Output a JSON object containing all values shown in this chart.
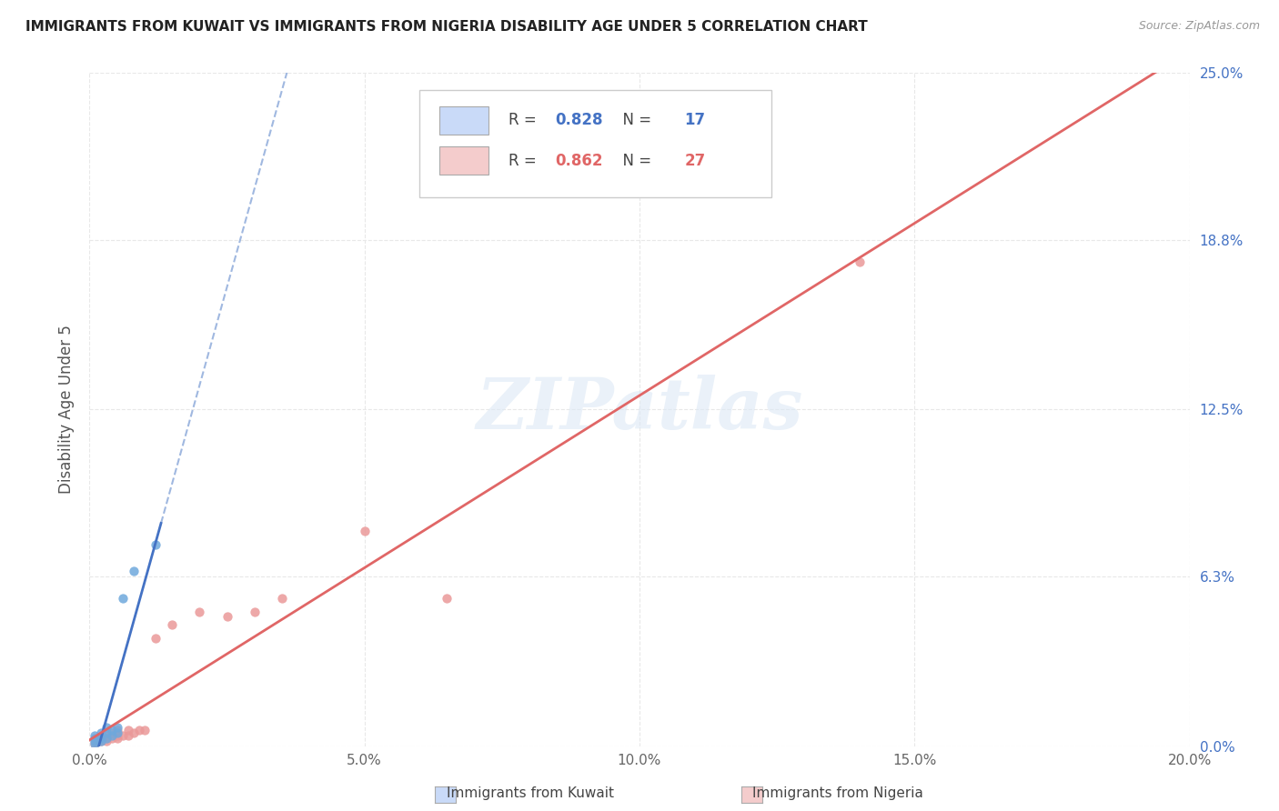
{
  "title": "IMMIGRANTS FROM KUWAIT VS IMMIGRANTS FROM NIGERIA DISABILITY AGE UNDER 5 CORRELATION CHART",
  "source": "Source: ZipAtlas.com",
  "ylabel": "Disability Age Under 5",
  "xlim": [
    0.0,
    0.2
  ],
  "ylim": [
    0.0,
    0.25
  ],
  "x_ticks": [
    0.0,
    0.05,
    0.1,
    0.15,
    0.2
  ],
  "x_tick_labels": [
    "0.0%",
    "5.0%",
    "10.0%",
    "15.0%",
    "20.0%"
  ],
  "y_tick_labels_right": [
    "0.0%",
    "6.3%",
    "12.5%",
    "18.8%",
    "25.0%"
  ],
  "y_ticks": [
    0.0,
    0.063,
    0.125,
    0.188,
    0.25
  ],
  "kuwait_color": "#6fa8dc",
  "nigeria_color": "#ea9999",
  "kuwait_line_color": "#4472c4",
  "nigeria_line_color": "#e06666",
  "kuwait_R": 0.828,
  "kuwait_N": 17,
  "nigeria_R": 0.862,
  "nigeria_N": 27,
  "watermark": "ZIPatlas",
  "kuwait_scatter_x": [
    0.001,
    0.001,
    0.001,
    0.001,
    0.002,
    0.002,
    0.002,
    0.003,
    0.003,
    0.003,
    0.004,
    0.004,
    0.005,
    0.005,
    0.006,
    0.008,
    0.012
  ],
  "kuwait_scatter_y": [
    0.001,
    0.002,
    0.003,
    0.004,
    0.002,
    0.003,
    0.005,
    0.003,
    0.005,
    0.007,
    0.004,
    0.006,
    0.005,
    0.007,
    0.055,
    0.065,
    0.075
  ],
  "nigeria_scatter_x": [
    0.001,
    0.001,
    0.002,
    0.002,
    0.003,
    0.003,
    0.003,
    0.004,
    0.004,
    0.005,
    0.005,
    0.005,
    0.006,
    0.007,
    0.007,
    0.008,
    0.009,
    0.01,
    0.012,
    0.015,
    0.02,
    0.025,
    0.03,
    0.035,
    0.05,
    0.065,
    0.14
  ],
  "nigeria_scatter_y": [
    0.001,
    0.002,
    0.002,
    0.003,
    0.002,
    0.003,
    0.004,
    0.003,
    0.005,
    0.003,
    0.004,
    0.006,
    0.004,
    0.004,
    0.006,
    0.005,
    0.006,
    0.006,
    0.04,
    0.045,
    0.05,
    0.048,
    0.05,
    0.055,
    0.08,
    0.055,
    0.18
  ],
  "legend_box_color_kuwait": "#c9daf8",
  "legend_box_color_nigeria": "#f4cccc",
  "background_color": "#ffffff",
  "grid_color": "#e8e8e8"
}
